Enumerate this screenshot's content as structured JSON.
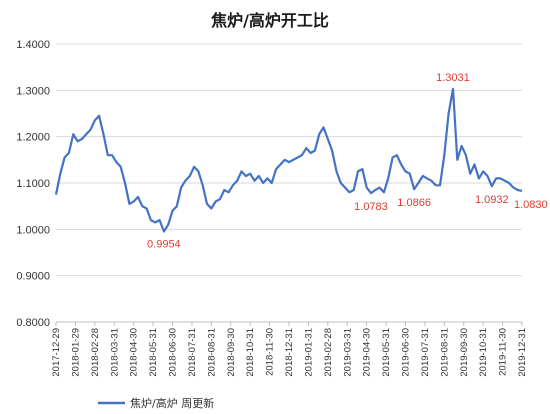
{
  "chart_data": {
    "type": "line",
    "title": "焦炉/高炉开工比",
    "ylim": [
      0.8,
      1.4
    ],
    "y_ticks": [
      "1.4000",
      "1.3000",
      "1.2000",
      "1.1000",
      "1.0000",
      "0.9000",
      "0.8000"
    ],
    "x_ticks": [
      "2017-12-29",
      "2018-01-29",
      "2018-02-28",
      "2018-03-31",
      "2018-04-30",
      "2018-05-31",
      "2018-06-30",
      "2018-07-31",
      "2018-08-31",
      "2018-09-30",
      "2018-10-31",
      "2018-11-30",
      "2018-12-31",
      "2019-01-31",
      "2019-02-28",
      "2019-03-31",
      "2019-04-30",
      "2019-05-31",
      "2019-06-30",
      "2019-07-31",
      "2019-08-31",
      "2019-09-30",
      "2019-10-31",
      "2019-11-30",
      "2019-12-31"
    ],
    "grid": true,
    "legend_position": "bottom",
    "series": [
      {
        "name": "焦炉/高炉 周更新",
        "color": "#4472c4",
        "values": [
          1.075,
          1.12,
          1.155,
          1.165,
          1.205,
          1.19,
          1.195,
          1.205,
          1.215,
          1.235,
          1.245,
          1.205,
          1.16,
          1.16,
          1.145,
          1.135,
          1.1,
          1.055,
          1.06,
          1.07,
          1.05,
          1.045,
          1.02,
          1.015,
          1.02,
          0.9954,
          1.01,
          1.04,
          1.05,
          1.09,
          1.105,
          1.115,
          1.135,
          1.125,
          1.095,
          1.055,
          1.045,
          1.06,
          1.065,
          1.085,
          1.08,
          1.095,
          1.105,
          1.125,
          1.115,
          1.12,
          1.105,
          1.115,
          1.1,
          1.11,
          1.1,
          1.13,
          1.14,
          1.15,
          1.145,
          1.15,
          1.155,
          1.16,
          1.175,
          1.165,
          1.17,
          1.205,
          1.22,
          1.195,
          1.17,
          1.125,
          1.1,
          1.09,
          1.08,
          1.085,
          1.125,
          1.13,
          1.09,
          1.0783,
          1.085,
          1.09,
          1.08,
          1.11,
          1.155,
          1.16,
          1.14,
          1.125,
          1.12,
          1.0866,
          1.1,
          1.115,
          1.11,
          1.105,
          1.095,
          1.095,
          1.16,
          1.25,
          1.3031,
          1.15,
          1.18,
          1.16,
          1.12,
          1.14,
          1.11,
          1.125,
          1.115,
          1.0932,
          1.11,
          1.11,
          1.105,
          1.1,
          1.09,
          1.085,
          1.083
        ]
      }
    ],
    "annotations": [
      {
        "index": 25,
        "label": "0.9954",
        "color": "#e03c31"
      },
      {
        "index": 73,
        "label": "1.0783",
        "color": "#e03c31"
      },
      {
        "index": 83,
        "label": "1.0866",
        "color": "#e03c31"
      },
      {
        "index": 92,
        "label": "1.3031",
        "color": "#e03c31"
      },
      {
        "index": 101,
        "label": "1.0932",
        "color": "#e03c31"
      },
      {
        "index": 108,
        "label": "1.0830",
        "color": "#e03c31"
      }
    ]
  }
}
